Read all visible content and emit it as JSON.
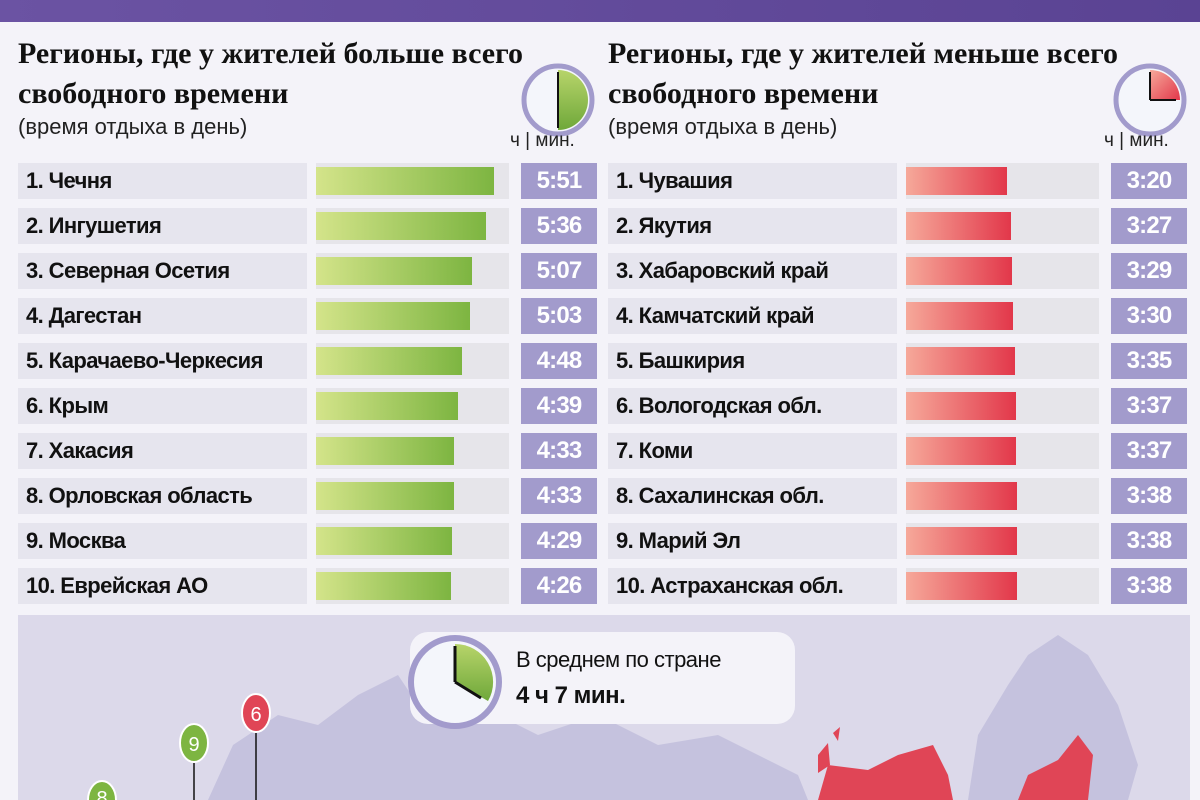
{
  "chart_data": [
    {
      "type": "bar",
      "title": "Регионы, где у жителей больше всего свободного времени",
      "subtitle": "(время отдыха в день)",
      "units_label": "ч | мин.",
      "color": "#7db541",
      "categories": [
        "1. Чечня",
        "2. Ингушетия",
        "3. Северная Осетия",
        "4. Дагестан",
        "5. Карачаево-Черкесия",
        "6. Крым",
        "7. Хакасия",
        "8. Орловская область",
        "9. Москва",
        "10. Еврейская АО"
      ],
      "values": [
        "5:51",
        "5:36",
        "5:07",
        "5:03",
        "4:48",
        "4:39",
        "4:33",
        "4:33",
        "4:29",
        "4:26"
      ]
    },
    {
      "type": "bar",
      "title": "Регионы, где у жителей меньше всего свободного времени",
      "subtitle": "(время отдыха в день)",
      "units_label": "ч | мин.",
      "color": "#e2374a",
      "categories": [
        "1. Чувашия",
        "2. Якутия",
        "3. Хабаровский край",
        "4. Камчатский край",
        "5. Башкирия",
        "6. Вологодская обл.",
        "7. Коми",
        "8. Сахалинская обл.",
        "9. Марий Эл",
        "10. Астраханская обл."
      ],
      "values": [
        "3:20",
        "3:27",
        "3:29",
        "3:30",
        "3:35",
        "3:37",
        "3:37",
        "3:38",
        "3:38",
        "3:38"
      ]
    }
  ],
  "average": {
    "label": "В среднем по стране",
    "value": "4 ч 7 мин."
  },
  "map": {
    "pins": [
      {
        "number": "6",
        "color": "#e04556"
      },
      {
        "number": "9",
        "color": "#7db541"
      },
      {
        "number": "8",
        "color": "#7db541"
      }
    ],
    "region_color": "#c5c2de",
    "highlight_color": "#e04556"
  }
}
